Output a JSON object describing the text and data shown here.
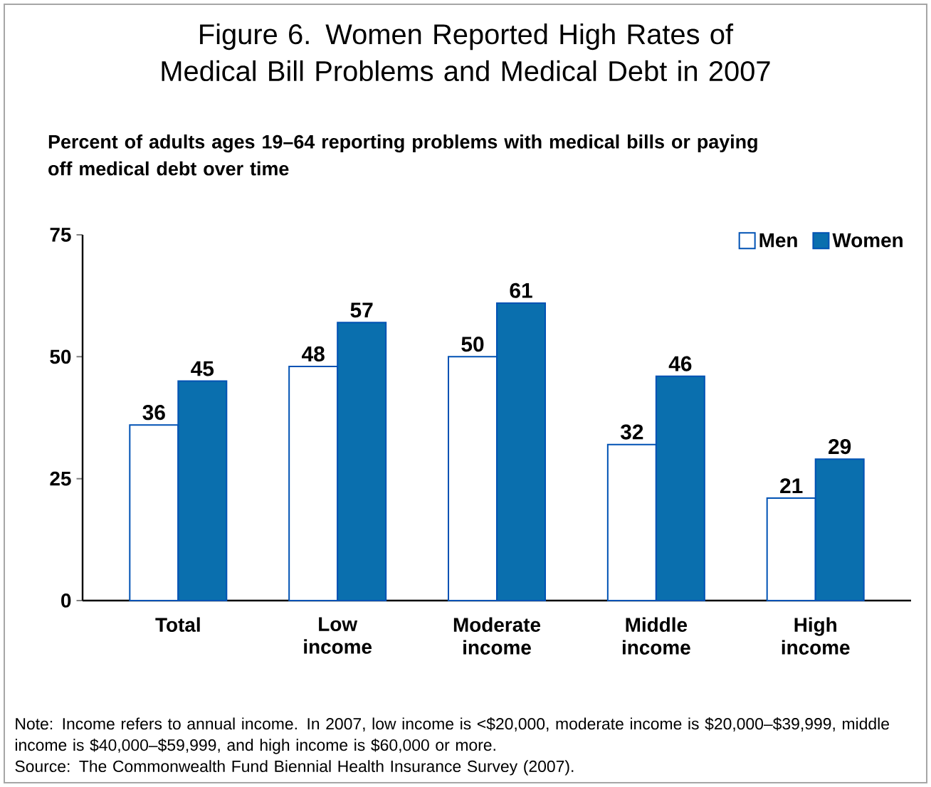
{
  "chart_data": {
    "type": "bar",
    "title": "Figure 6. Women Reported High Rates of Medical Bill Problems and Medical Debt in 2007",
    "subtitle": "Percent of adults ages 19–64 reporting problems with medical bills or paying off medical debt over time",
    "categories": [
      "Total",
      "Low income",
      "Moderate income",
      "Middle income",
      "High income"
    ],
    "series": [
      {
        "name": "Men",
        "color": "#ffffff",
        "values": [
          36,
          48,
          50,
          32,
          21
        ]
      },
      {
        "name": "Women",
        "color": "#0a6fae",
        "values": [
          45,
          57,
          61,
          46,
          29
        ]
      }
    ],
    "ylim": [
      0,
      75
    ],
    "yticks": [
      0,
      25,
      50,
      75
    ],
    "data_labels": true,
    "legend": "top right",
    "grid": false,
    "annotations": [
      "Note: Income refers to annual income. In 2007, low income is <$20,000, moderate income is $20,000–$39,999, middle income is $40,000–$59,999, and high income is $60,000 or more.",
      "Source: The Commonwealth Fund Biennial Health Insurance Survey (2007)."
    ]
  }
}
